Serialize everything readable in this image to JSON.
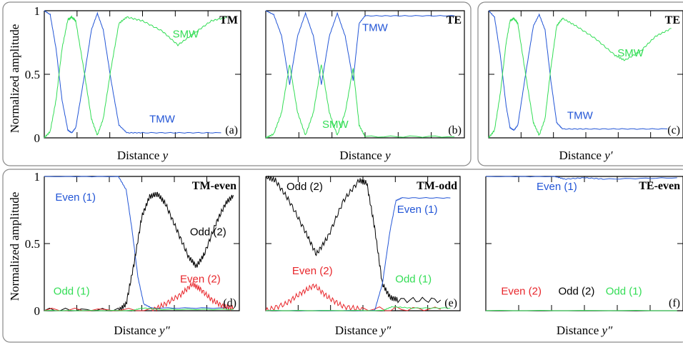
{
  "colors": {
    "tmw": "#2255d6",
    "smw": "#33dd55",
    "black": "#000000",
    "red": "#e8262b",
    "green_base": "#66dd22"
  },
  "ylabel": "Normalized amplitude",
  "chart_data": [
    {
      "id": "a",
      "type": "line",
      "title": "TM",
      "panel_label": "(a)",
      "xlabel": "Distance",
      "xvar": "y",
      "ylim": [
        0,
        1
      ],
      "yticks": [
        "0",
        "0.5",
        "1"
      ],
      "series": [
        {
          "name": "TMW",
          "color": "#2255d6",
          "points": [
            [
              0,
              1
            ],
            [
              0.03,
              0.97
            ],
            [
              0.06,
              0.7
            ],
            [
              0.09,
              0.3
            ],
            [
              0.12,
              0.06
            ],
            [
              0.14,
              0.04
            ],
            [
              0.16,
              0.08
            ],
            [
              0.2,
              0.45
            ],
            [
              0.24,
              0.85
            ],
            [
              0.27,
              0.98
            ],
            [
              0.3,
              0.85
            ],
            [
              0.34,
              0.45
            ],
            [
              0.38,
              0.1
            ],
            [
              0.42,
              0.04
            ],
            [
              0.5,
              0.04
            ],
            [
              0.7,
              0.04
            ],
            [
              0.9,
              0.04
            ]
          ]
        },
        {
          "name": "SMW",
          "color": "#33dd55",
          "points": [
            [
              0,
              0
            ],
            [
              0.03,
              0.05
            ],
            [
              0.06,
              0.3
            ],
            [
              0.09,
              0.7
            ],
            [
              0.12,
              0.93
            ],
            [
              0.14,
              0.95
            ],
            [
              0.16,
              0.92
            ],
            [
              0.2,
              0.55
            ],
            [
              0.24,
              0.15
            ],
            [
              0.27,
              0.02
            ],
            [
              0.3,
              0.15
            ],
            [
              0.34,
              0.55
            ],
            [
              0.38,
              0.9
            ],
            [
              0.42,
              0.95
            ],
            [
              0.5,
              0.92
            ],
            [
              0.6,
              0.84
            ],
            [
              0.68,
              0.73
            ],
            [
              0.76,
              0.82
            ],
            [
              0.85,
              0.92
            ],
            [
              0.93,
              0.95
            ]
          ]
        }
      ],
      "labels": [
        {
          "text": "SMW",
          "series": "SMW",
          "x": 0.72,
          "y": 0.79
        },
        {
          "text": "TMW",
          "series": "TMW",
          "x": 0.6,
          "y": 0.12
        }
      ]
    },
    {
      "id": "b",
      "type": "line",
      "title": "TE",
      "panel_label": "(b)",
      "xlabel": "Distance",
      "xvar": "y",
      "ylim": [
        0,
        1
      ],
      "yticks": [],
      "series": [
        {
          "name": "TMW",
          "color": "#2255d6",
          "points": [
            [
              0,
              1
            ],
            [
              0.04,
              0.97
            ],
            [
              0.08,
              0.8
            ],
            [
              0.12,
              0.42
            ],
            [
              0.16,
              0.8
            ],
            [
              0.2,
              0.98
            ],
            [
              0.24,
              0.8
            ],
            [
              0.28,
              0.42
            ],
            [
              0.32,
              0.8
            ],
            [
              0.36,
              0.98
            ],
            [
              0.4,
              0.8
            ],
            [
              0.44,
              0.45
            ],
            [
              0.47,
              0.9
            ],
            [
              0.5,
              0.96
            ],
            [
              0.7,
              0.96
            ],
            [
              0.95,
              0.96
            ]
          ]
        },
        {
          "name": "SMW",
          "color": "#33dd55",
          "points": [
            [
              0,
              0
            ],
            [
              0.04,
              0.03
            ],
            [
              0.08,
              0.2
            ],
            [
              0.12,
              0.58
            ],
            [
              0.16,
              0.2
            ],
            [
              0.2,
              0.02
            ],
            [
              0.24,
              0.2
            ],
            [
              0.28,
              0.58
            ],
            [
              0.32,
              0.2
            ],
            [
              0.36,
              0.02
            ],
            [
              0.4,
              0.2
            ],
            [
              0.44,
              0.55
            ],
            [
              0.47,
              0.1
            ],
            [
              0.5,
              0.01
            ],
            [
              0.95,
              0.01
            ]
          ]
        }
      ],
      "labels": [
        {
          "text": "TMW",
          "series": "TMW",
          "x": 0.55,
          "y": 0.84
        },
        {
          "text": "SMW",
          "series": "SMW",
          "x": 0.35,
          "y": 0.08
        }
      ]
    },
    {
      "id": "c",
      "type": "line",
      "title": "TE",
      "panel_label": "(c)",
      "xlabel": "Distance",
      "xvar": "y′",
      "ylim": [
        0,
        1
      ],
      "yticks": [],
      "series": [
        {
          "name": "TMW",
          "color": "#2255d6",
          "points": [
            [
              0,
              1
            ],
            [
              0.03,
              0.95
            ],
            [
              0.06,
              0.65
            ],
            [
              0.09,
              0.25
            ],
            [
              0.11,
              0.08
            ],
            [
              0.13,
              0.06
            ],
            [
              0.15,
              0.1
            ],
            [
              0.19,
              0.5
            ],
            [
              0.23,
              0.88
            ],
            [
              0.26,
              0.97
            ],
            [
              0.29,
              0.85
            ],
            [
              0.32,
              0.45
            ],
            [
              0.35,
              0.12
            ],
            [
              0.38,
              0.07
            ],
            [
              0.5,
              0.07
            ],
            [
              0.7,
              0.07
            ],
            [
              0.92,
              0.07
            ]
          ]
        },
        {
          "name": "SMW",
          "color": "#33dd55",
          "points": [
            [
              0,
              0
            ],
            [
              0.03,
              0.06
            ],
            [
              0.06,
              0.35
            ],
            [
              0.09,
              0.75
            ],
            [
              0.11,
              0.92
            ],
            [
              0.13,
              0.94
            ],
            [
              0.15,
              0.9
            ],
            [
              0.19,
              0.5
            ],
            [
              0.23,
              0.12
            ],
            [
              0.26,
              0.02
            ],
            [
              0.29,
              0.15
            ],
            [
              0.32,
              0.55
            ],
            [
              0.35,
              0.88
            ],
            [
              0.38,
              0.94
            ],
            [
              0.45,
              0.88
            ],
            [
              0.55,
              0.78
            ],
            [
              0.65,
              0.65
            ],
            [
              0.7,
              0.61
            ],
            [
              0.78,
              0.68
            ],
            [
              0.86,
              0.8
            ],
            [
              0.94,
              0.86
            ]
          ]
        }
      ],
      "labels": [
        {
          "text": "SMW",
          "series": "SMW",
          "x": 0.73,
          "y": 0.64
        },
        {
          "text": "TMW",
          "series": "TMW",
          "x": 0.47,
          "y": 0.15
        }
      ]
    },
    {
      "id": "d",
      "type": "line",
      "title": "TM-even",
      "panel_label": "(d)",
      "xlabel": "Distance",
      "xvar": "y″",
      "ylim": [
        0,
        1
      ],
      "yticks": [
        "0",
        "0.5",
        "1"
      ],
      "series": [
        {
          "name": "Even (1)",
          "color": "#2255d6",
          "points": [
            [
              0,
              1
            ],
            [
              0.38,
              1
            ],
            [
              0.42,
              0.9
            ],
            [
              0.45,
              0.6
            ],
            [
              0.48,
              0.25
            ],
            [
              0.51,
              0.05
            ],
            [
              0.55,
              0.02
            ],
            [
              0.95,
              0.02
            ]
          ]
        },
        {
          "name": "Odd (2)",
          "color": "#000000",
          "points": [
            [
              0,
              0
            ],
            [
              0.38,
              0
            ],
            [
              0.42,
              0.05
            ],
            [
              0.46,
              0.35
            ],
            [
              0.5,
              0.7
            ],
            [
              0.54,
              0.85
            ],
            [
              0.58,
              0.87
            ],
            [
              0.62,
              0.8
            ],
            [
              0.68,
              0.6
            ],
            [
              0.74,
              0.4
            ],
            [
              0.78,
              0.33
            ],
            [
              0.82,
              0.42
            ],
            [
              0.88,
              0.65
            ],
            [
              0.93,
              0.8
            ],
            [
              0.97,
              0.86
            ]
          ]
        },
        {
          "name": "Even (2)",
          "color": "#e8262b",
          "points": [
            [
              0,
              0
            ],
            [
              0.55,
              0
            ],
            [
              0.62,
              0.05
            ],
            [
              0.7,
              0.12
            ],
            [
              0.76,
              0.2
            ],
            [
              0.8,
              0.16
            ],
            [
              0.86,
              0.08
            ],
            [
              0.92,
              0.03
            ],
            [
              0.97,
              0.02
            ]
          ]
        },
        {
          "name": "Odd (1)",
          "color": "#33dd55",
          "points": [
            [
              0,
              0
            ],
            [
              0.45,
              0
            ],
            [
              0.5,
              0.02
            ],
            [
              0.6,
              0.01
            ],
            [
              0.97,
              0.01
            ]
          ]
        }
      ],
      "labels": [
        {
          "text": "Even (1)",
          "series": "Even (1)",
          "x": 0.16,
          "y": 0.82
        },
        {
          "text": "Odd (2)",
          "series": "Odd (2)",
          "x": 0.84,
          "y": 0.56
        },
        {
          "text": "Even (2)",
          "series": "Even (2)",
          "x": 0.8,
          "y": 0.21
        },
        {
          "text": "Odd (1)",
          "series": "Odd (1)",
          "x": 0.14,
          "y": 0.12
        }
      ]
    },
    {
      "id": "e",
      "type": "line",
      "title": "TM-odd",
      "panel_label": "(e)",
      "xlabel": "Distance",
      "xvar": "y″",
      "ylim": [
        0,
        1
      ],
      "yticks": [],
      "series": [
        {
          "name": "Odd (2)",
          "color": "#000000",
          "points": [
            [
              0,
              1
            ],
            [
              0.05,
              0.97
            ],
            [
              0.12,
              0.82
            ],
            [
              0.2,
              0.6
            ],
            [
              0.26,
              0.42
            ],
            [
              0.32,
              0.55
            ],
            [
              0.4,
              0.82
            ],
            [
              0.48,
              0.97
            ],
            [
              0.52,
              0.95
            ],
            [
              0.56,
              0.62
            ],
            [
              0.6,
              0.2
            ],
            [
              0.64,
              0.1
            ],
            [
              0.68,
              0.08
            ],
            [
              0.9,
              0.08
            ]
          ]
        },
        {
          "name": "Even (2)",
          "color": "#e8262b",
          "points": [
            [
              0,
              0
            ],
            [
              0.1,
              0.05
            ],
            [
              0.18,
              0.13
            ],
            [
              0.25,
              0.19
            ],
            [
              0.32,
              0.1
            ],
            [
              0.4,
              0.03
            ],
            [
              0.5,
              0.01
            ],
            [
              0.9,
              0.01
            ]
          ]
        },
        {
          "name": "Even (1)",
          "color": "#2255d6",
          "points": [
            [
              0,
              0
            ],
            [
              0.56,
              0
            ],
            [
              0.6,
              0.2
            ],
            [
              0.64,
              0.6
            ],
            [
              0.67,
              0.82
            ],
            [
              0.7,
              0.84
            ],
            [
              0.95,
              0.84
            ]
          ]
        },
        {
          "name": "Odd (1)",
          "color": "#33dd55",
          "points": [
            [
              0,
              0
            ],
            [
              0.6,
              0
            ],
            [
              0.65,
              0.03
            ],
            [
              0.75,
              0.02
            ],
            [
              0.95,
              0.02
            ]
          ]
        }
      ],
      "labels": [
        {
          "text": "Odd (2)",
          "series": "Odd (2)",
          "x": 0.2,
          "y": 0.9
        },
        {
          "text": "Even (1)",
          "series": "Even (1)",
          "x": 0.78,
          "y": 0.73
        },
        {
          "text": "Even (2)",
          "series": "Even (2)",
          "x": 0.24,
          "y": 0.27
        },
        {
          "text": "Odd (1)",
          "series": "Odd (1)",
          "x": 0.76,
          "y": 0.21
        }
      ]
    },
    {
      "id": "f",
      "type": "line",
      "title": "TE-even",
      "panel_label": "(f)",
      "xlabel": "Distance",
      "xvar": "y″",
      "ylim": [
        0,
        1
      ],
      "yticks": [],
      "series": [
        {
          "name": "Even (1)",
          "color": "#2255d6",
          "points": [
            [
              0,
              1
            ],
            [
              0.35,
              1
            ],
            [
              0.4,
              0.98
            ],
            [
              0.5,
              0.99
            ],
            [
              0.6,
              0.98
            ],
            [
              0.97,
              0.99
            ]
          ]
        },
        {
          "name": "Odd (1)",
          "color": "#33dd55",
          "points": [
            [
              0,
              0
            ],
            [
              0.97,
              0
            ]
          ]
        }
      ],
      "labels": [
        {
          "text": "Even (1)",
          "series": "Even (1)",
          "x": 0.36,
          "y": 0.9
        },
        {
          "text": "Even (2)",
          "series": "red",
          "x": 0.18,
          "y": 0.12
        },
        {
          "text": "Odd (2)",
          "series": "black",
          "x": 0.46,
          "y": 0.12
        },
        {
          "text": "Odd (1)",
          "series": "Odd (1)",
          "x": 0.7,
          "y": 0.12
        }
      ]
    }
  ]
}
